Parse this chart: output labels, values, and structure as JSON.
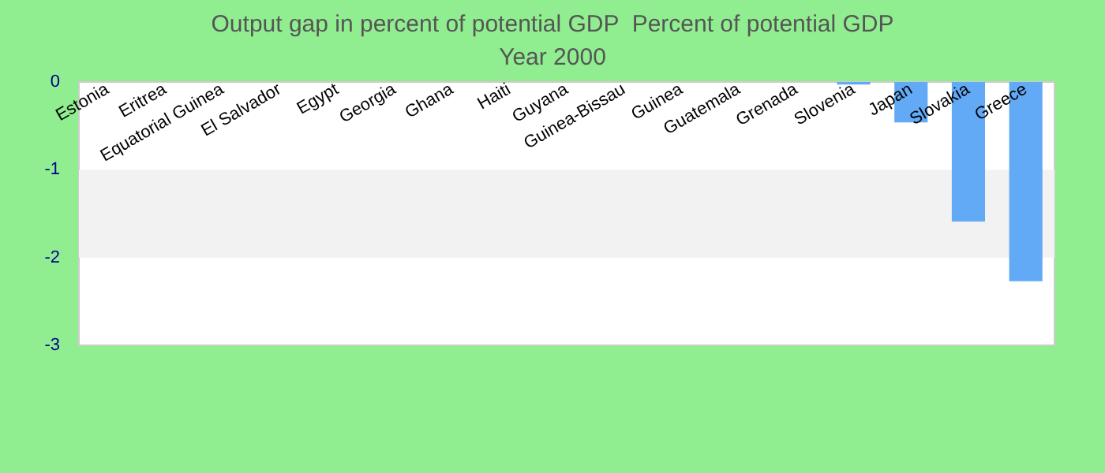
{
  "chart_data": {
    "type": "bar",
    "title": "Output gap in percent of potential GDP  Percent of potential GDP",
    "subtitle": "Year 2000",
    "categories": [
      "Estonia",
      "Eritrea",
      "Equatorial Guinea",
      "El Salvador",
      "Egypt",
      "Georgia",
      "Ghana",
      "Haiti",
      "Guyana",
      "Guinea-Bissau",
      "Guinea",
      "Guatemala",
      "Grenada",
      "Slovenia",
      "Japan",
      "Slovakia",
      "Greece"
    ],
    "values": [
      0,
      0,
      0,
      0,
      0,
      0,
      0,
      0,
      0,
      0,
      0,
      0,
      0,
      -0.03,
      -0.46,
      -1.59,
      -2.27
    ],
    "color": "#62aaf5",
    "ylim": [
      -3,
      0
    ],
    "yticks": [
      -3,
      -2,
      -1,
      0
    ],
    "bands": [
      {
        "axis": "y",
        "from": -2,
        "to": -1,
        "color": "#f2f2f2"
      }
    ]
  }
}
